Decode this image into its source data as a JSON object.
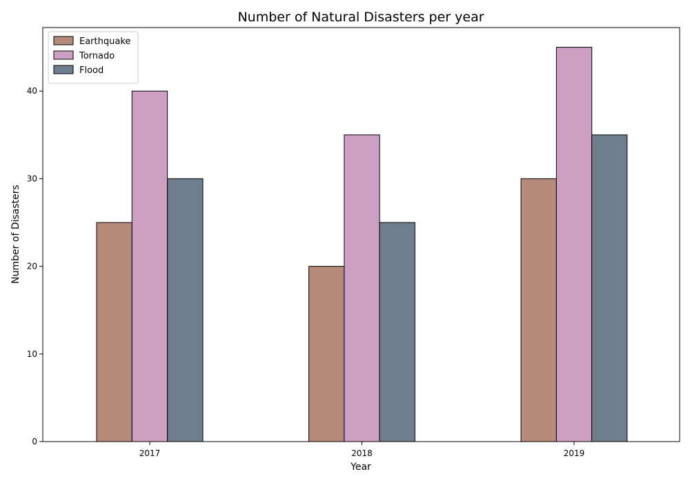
{
  "chart_data": {
    "type": "bar",
    "title": "Number of Natural Disasters per year",
    "xlabel": "Year",
    "ylabel": "Number of Disasters",
    "categories": [
      "2017",
      "2018",
      "2019"
    ],
    "series": [
      {
        "name": "Earthquake",
        "values": [
          25,
          20,
          30
        ],
        "color": "#b58b7b"
      },
      {
        "name": "Tornado",
        "values": [
          40,
          35,
          45
        ],
        "color": "#cda0c3"
      },
      {
        "name": "Flood",
        "values": [
          30,
          25,
          35
        ],
        "color": "#6e7e8f"
      }
    ],
    "ylim": [
      0,
      47.25
    ],
    "yticks": [
      0,
      10,
      20,
      30,
      40
    ],
    "grid": false,
    "legend_position": "top-left",
    "bar_edge_color": "#000000"
  }
}
